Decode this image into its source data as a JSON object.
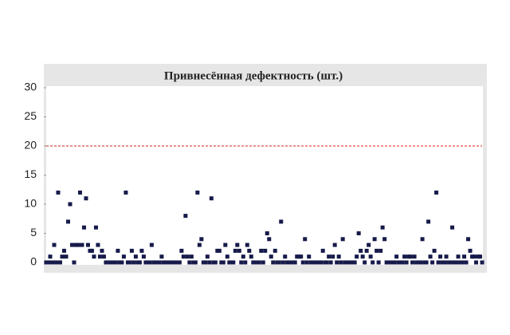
{
  "chart_data": {
    "type": "scatter",
    "title": "Привнесённая дефектность (шт.)",
    "values": [
      0,
      0,
      1,
      0,
      3,
      0,
      12,
      0,
      1,
      2,
      1,
      7,
      10,
      3,
      0,
      3,
      3,
      12,
      3,
      6,
      11,
      3,
      2,
      2,
      1,
      6,
      3,
      1,
      2,
      1,
      0,
      0,
      0,
      0,
      0,
      0,
      2,
      0,
      0,
      1,
      12,
      0,
      0,
      2,
      0,
      1,
      0,
      0,
      2,
      1,
      0,
      0,
      0,
      3,
      0,
      0,
      0,
      0,
      1,
      0,
      0,
      0,
      0,
      0,
      0,
      0,
      0,
      0,
      2,
      1,
      8,
      1,
      0,
      1,
      0,
      0,
      12,
      3,
      4,
      0,
      0,
      1,
      0,
      11,
      0,
      0,
      2,
      2,
      0,
      0,
      3,
      1,
      0,
      0,
      0,
      2,
      3,
      2,
      0,
      1,
      0,
      3,
      2,
      1,
      0,
      0,
      0,
      0,
      2,
      0,
      2,
      5,
      4,
      1,
      0,
      2,
      0,
      0,
      7,
      0,
      1,
      0,
      0,
      0,
      0,
      0,
      1,
      1,
      1,
      0,
      4,
      0,
      1,
      0,
      0,
      0,
      0,
      0,
      0,
      2,
      0,
      0,
      1,
      0,
      1,
      3,
      0,
      1,
      0,
      4,
      0,
      0,
      0,
      0,
      0,
      0,
      1,
      5,
      2,
      1,
      0,
      2,
      3,
      1,
      0,
      4,
      2,
      0,
      2,
      6,
      4,
      0,
      0,
      0,
      0,
      0,
      1,
      0,
      0,
      0,
      1,
      0,
      1,
      1,
      0,
      1,
      0,
      0,
      0,
      4,
      0,
      0,
      7,
      1,
      0,
      2,
      12,
      0,
      1,
      0,
      0,
      1,
      0,
      0,
      6,
      0,
      0,
      1,
      0,
      0,
      1,
      0,
      4,
      2,
      1,
      1,
      0,
      1,
      1,
      0
    ],
    "color": "#161a4a",
    "ylim": [
      0,
      30
    ],
    "yticks": [
      0,
      5,
      10,
      15,
      20,
      25,
      30
    ],
    "reference_line": {
      "value": 20,
      "color": "#d62020"
    }
  }
}
